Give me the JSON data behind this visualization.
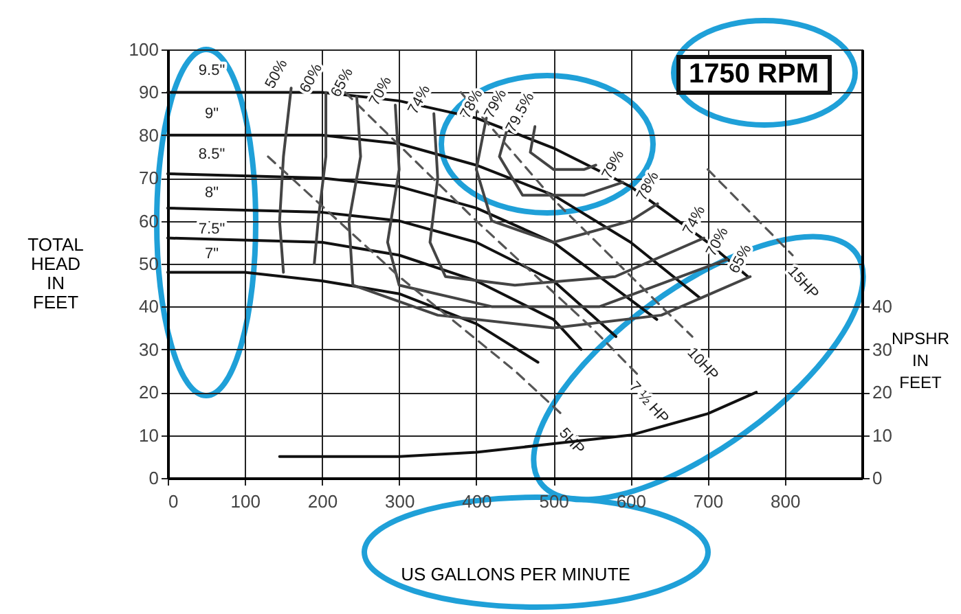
{
  "chart_data": {
    "type": "line",
    "xlabel": "US GALLONS PER MINUTE",
    "ylabel": "TOTAL HEAD IN FEET",
    "y2label": "NPSHR IN FEET",
    "xlim": [
      0,
      900
    ],
    "xticks": [
      0,
      100,
      200,
      300,
      400,
      500,
      600,
      700,
      800
    ],
    "ylim": [
      0,
      100
    ],
    "yticks": [
      0,
      10,
      20,
      30,
      40,
      50,
      60,
      70,
      80,
      90,
      100
    ],
    "y2lim": [
      0,
      100
    ],
    "y2ticks": [
      0,
      10,
      20,
      30,
      40
    ],
    "grid": true,
    "legend": false,
    "marker": "none",
    "series": [
      {
        "name": "9.5\"",
        "color": "#111111",
        "line_style": "solid",
        "x": [
          0,
          200,
          300,
          400,
          500,
          600,
          700,
          752
        ],
        "values": [
          90,
          90,
          88,
          84,
          77,
          68,
          55,
          47
        ]
      },
      {
        "name": "9\"",
        "color": "#111111",
        "line_style": "solid",
        "x": [
          0,
          200,
          300,
          400,
          500,
          600,
          690
        ],
        "values": [
          80,
          80,
          78,
          73,
          66,
          55,
          42
        ]
      },
      {
        "name": "8.5\"",
        "color": "#111111",
        "line_style": "solid",
        "x": [
          0,
          200,
          300,
          400,
          500,
          634
        ],
        "values": [
          71,
          70,
          68,
          63,
          55,
          37
        ]
      },
      {
        "name": "8\"",
        "color": "#111111",
        "line_style": "solid",
        "x": [
          0,
          200,
          300,
          400,
          500,
          581
        ],
        "values": [
          63,
          62,
          60,
          55,
          46,
          33
        ]
      },
      {
        "name": "7.5\"",
        "color": "#111111",
        "line_style": "solid",
        "x": [
          0,
          200,
          300,
          400,
          500,
          536
        ],
        "values": [
          56,
          55,
          52,
          46,
          37,
          30
        ]
      },
      {
        "name": "7\"",
        "color": "#111111",
        "line_style": "solid",
        "x": [
          0,
          100,
          200,
          300,
          400,
          480
        ],
        "values": [
          48,
          48,
          46,
          43,
          36,
          27
        ]
      },
      {
        "name": "5HP",
        "color": "#555555",
        "line_style": "dashed",
        "x": [
          130,
          300,
          450,
          510
        ],
        "values": [
          75,
          47,
          25,
          15
        ]
      },
      {
        "name": "7 ½ HP",
        "color": "#555555",
        "line_style": "dashed",
        "x": [
          230,
          400,
          550,
          610
        ],
        "values": [
          90,
          60,
          35,
          24
        ]
      },
      {
        "name": "10HP",
        "color": "#555555",
        "line_style": "dashed",
        "x": [
          380,
          500,
          640,
          680
        ],
        "values": [
          90,
          65,
          40,
          33
        ]
      },
      {
        "name": "15HP",
        "color": "#555555",
        "line_style": "dashed",
        "x": [
          700,
          810
        ],
        "values": [
          72,
          52
        ]
      },
      {
        "name": "50%",
        "color": "#444444",
        "line_style": "solid",
        "x": [
          160,
          150,
          145,
          150
        ],
        "values": [
          91,
          75,
          60,
          48
        ]
      },
      {
        "name": "60%",
        "color": "#444444",
        "line_style": "solid",
        "x": [
          205,
          205,
          195,
          190
        ],
        "values": [
          90,
          75,
          60,
          50
        ]
      },
      {
        "name": "65%",
        "color": "#444444",
        "line_style": "solid",
        "x": [
          245,
          250,
          235,
          240,
          350,
          500,
          640,
          755
        ],
        "values": [
          89,
          75,
          60,
          45,
          38,
          35,
          38,
          47
        ]
      },
      {
        "name": "70%",
        "color": "#444444",
        "line_style": "solid",
        "x": [
          295,
          300,
          285,
          300,
          420,
          560,
          725
        ],
        "values": [
          87,
          72,
          55,
          45,
          40,
          40,
          51
        ]
      },
      {
        "name": "74%",
        "color": "#444444",
        "line_style": "solid",
        "x": [
          345,
          350,
          340,
          360,
          450,
          580,
          695
        ],
        "values": [
          85,
          70,
          55,
          47,
          45,
          47,
          56
        ]
      },
      {
        "name": "78%",
        "color": "#444444",
        "line_style": "solid",
        "x": [
          413,
          400,
          420,
          500,
          600,
          635
        ],
        "values": [
          84,
          72,
          60,
          55,
          60,
          64
        ]
      },
      {
        "name": "79%",
        "color": "#444444",
        "line_style": "solid",
        "x": [
          444,
          430,
          460,
          540,
          590
        ],
        "values": [
          84,
          75,
          66,
          66,
          69
        ]
      },
      {
        "name": "79.5%",
        "color": "#444444",
        "line_style": "solid",
        "x": [
          476,
          470,
          500,
          540,
          555
        ],
        "values": [
          82,
          76,
          72,
          72,
          73
        ]
      },
      {
        "color": "#111111",
        "line_style": "solid",
        "axis": "y2",
        "x": [
          145,
          300,
          400,
          500,
          600,
          700,
          763
        ],
        "values": [
          5,
          5,
          6,
          8,
          10,
          15,
          20
        ]
      }
    ],
    "annotations": [
      "1750 RPM"
    ]
  }
}
